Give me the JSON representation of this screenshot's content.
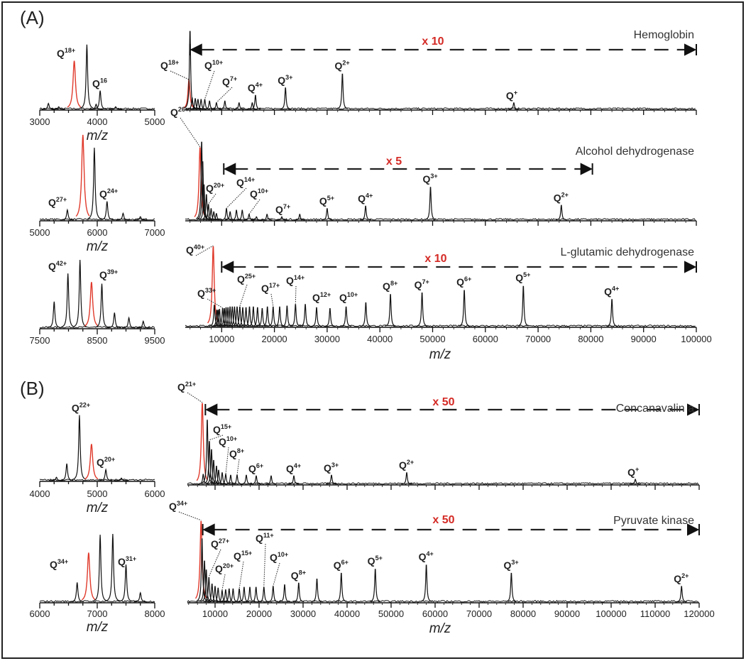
{
  "sections": {
    "a": "(A)",
    "b": "(B)"
  },
  "colors": {
    "trace": "#111111",
    "highlight": "#e03a2c",
    "multiplier": "#d42a25"
  },
  "chart_data": [
    {
      "id": "A1",
      "type": "line",
      "group": "A",
      "xlim": [
        3000,
        5000
      ],
      "xticks": [
        3000,
        4000,
        5000
      ],
      "xlabel": "m/z",
      "peaks": [
        [
          3150,
          7
        ],
        [
          3330,
          3
        ],
        [
          3600,
          57,
          "red"
        ],
        [
          3820,
          76
        ],
        [
          3980,
          6
        ],
        [
          4050,
          22
        ],
        [
          4320,
          3
        ]
      ],
      "labels": [
        {
          "q": "Q",
          "sup": "18+",
          "mz": 3820
        },
        {
          "q": "Q",
          "sup": "16",
          "mz": 4050
        }
      ]
    },
    {
      "id": "A2",
      "type": "line",
      "group": "A",
      "xlim": [
        5000,
        7000
      ],
      "xticks": [
        5000,
        6000,
        7000
      ],
      "xlabel": "m/z",
      "peaks": [
        [
          5480,
          12
        ],
        [
          5750,
          100,
          "red"
        ],
        [
          5950,
          85
        ],
        [
          6170,
          22
        ],
        [
          6450,
          8
        ],
        [
          6750,
          4
        ]
      ],
      "labels": [
        {
          "q": "Q",
          "sup": "27+",
          "mz": 5480
        },
        {
          "q": "Q",
          "sup": "24+",
          "mz": 6170
        }
      ]
    },
    {
      "id": "A3",
      "type": "line",
      "group": "A",
      "xlim": [
        7500,
        9500
      ],
      "xticks": [
        7500,
        8500,
        9500
      ],
      "xlabel": "",
      "peaks": [
        [
          7750,
          31
        ],
        [
          7990,
          64
        ],
        [
          8200,
          80
        ],
        [
          8400,
          54,
          "red"
        ],
        [
          8580,
          52
        ],
        [
          8800,
          18
        ],
        [
          9050,
          12
        ],
        [
          9300,
          8
        ]
      ],
      "labels": [
        {
          "q": "Q",
          "sup": "42+",
          "mz": 7990
        },
        {
          "q": "Q",
          "sup": "39+",
          "mz": 8580
        }
      ]
    },
    {
      "id": "Hb",
      "type": "line",
      "group": "A",
      "title": "Hemoglobin",
      "xlim": [
        3000,
        100000
      ],
      "xticks": [],
      "xlabel": "",
      "magnification": {
        "label": "x 10",
        "from": 4000,
        "to": 100000
      },
      "peaks": [
        [
          3800,
          35,
          "red"
        ],
        [
          4000,
          95
        ],
        [
          4400,
          14
        ],
        [
          5000,
          13
        ],
        [
          5500,
          12
        ],
        [
          6100,
          12
        ],
        [
          6800,
          12
        ],
        [
          7700,
          10
        ],
        [
          9000,
          8
        ],
        [
          10600,
          10
        ],
        [
          13300,
          8
        ],
        [
          15800,
          8
        ],
        [
          16400,
          17
        ],
        [
          22100,
          26
        ],
        [
          32900,
          43
        ],
        [
          65400,
          8
        ]
      ],
      "labels": [
        {
          "q": "Q",
          "sup": "18+",
          "mz": 3800
        },
        {
          "q": "Q",
          "sup": "10+",
          "mz": 6800
        },
        {
          "q": "Q",
          "sup": "7+",
          "mz": 9000
        },
        {
          "q": "Q",
          "sup": "4+",
          "mz": 16400
        },
        {
          "q": "Q",
          "sup": "3+",
          "mz": 22100
        },
        {
          "q": "Q",
          "sup": "2+",
          "mz": 32900
        },
        {
          "q": "Q",
          "sup": "+",
          "mz": 65400
        }
      ]
    },
    {
      "id": "ADH",
      "type": "line",
      "group": "A",
      "title": "Alcohol dehydrogenase",
      "xlim": [
        3000,
        100000
      ],
      "xticks": [],
      "xlabel": "",
      "magnification": {
        "label": "x 5",
        "from": 10400,
        "to": 80300
      },
      "peaks": [
        [
          5900,
          86,
          "red"
        ],
        [
          6200,
          95
        ],
        [
          6400,
          71
        ],
        [
          6650,
          43
        ],
        [
          7100,
          31
        ],
        [
          7500,
          19
        ],
        [
          8000,
          14
        ],
        [
          8500,
          10
        ],
        [
          9000,
          8
        ],
        [
          10900,
          14
        ],
        [
          11600,
          10
        ],
        [
          12800,
          12
        ],
        [
          13900,
          12
        ],
        [
          15200,
          7
        ],
        [
          16600,
          4
        ],
        [
          18600,
          7
        ],
        [
          21400,
          4
        ],
        [
          24800,
          7
        ],
        [
          30000,
          14
        ],
        [
          37300,
          17
        ],
        [
          49600,
          40
        ],
        [
          74400,
          18
        ]
      ],
      "labels": [
        {
          "q": "Q",
          "sup": "26+",
          "mz": 5900
        },
        {
          "q": "Q",
          "sup": "20+",
          "mz": 7500
        },
        {
          "q": "Q",
          "sup": "14+",
          "mz": 10900
        },
        {
          "q": "Q",
          "sup": "10+",
          "mz": 15200
        },
        {
          "q": "Q",
          "sup": "7+",
          "mz": 21400
        },
        {
          "q": "Q",
          "sup": "5+",
          "mz": 30000
        },
        {
          "q": "Q",
          "sup": "4+",
          "mz": 37300
        },
        {
          "q": "Q",
          "sup": "3+",
          "mz": 49600
        },
        {
          "q": "Q",
          "sup": "2+",
          "mz": 74400
        }
      ]
    },
    {
      "id": "LGDH",
      "type": "line",
      "group": "A",
      "title": "L-glutamic dehydrogenase",
      "xlim": [
        3000,
        100000
      ],
      "xticks": [
        10000,
        20000,
        30000,
        40000,
        50000,
        60000,
        70000,
        80000,
        90000,
        100000
      ],
      "xlabel": "m/z",
      "magnification": {
        "label": "x 10",
        "from": 10000,
        "to": 100000
      },
      "peaks": [
        [
          8400,
          95,
          "red"
        ],
        [
          8600,
          26
        ],
        [
          9080,
          20
        ],
        [
          9340,
          20
        ],
        [
          9600,
          21
        ],
        [
          10180,
          22
        ],
        [
          10500,
          22
        ],
        [
          10840,
          23
        ],
        [
          11200,
          23
        ],
        [
          11590,
          24
        ],
        [
          12000,
          24
        ],
        [
          12440,
          24
        ],
        [
          12920,
          24
        ],
        [
          13440,
          24
        ],
        [
          14000,
          23
        ],
        [
          14610,
          23
        ],
        [
          15270,
          24
        ],
        [
          16000,
          24
        ],
        [
          16800,
          23
        ],
        [
          17680,
          22
        ],
        [
          18670,
          24
        ],
        [
          19760,
          24
        ],
        [
          21000,
          24
        ],
        [
          22400,
          25
        ],
        [
          24000,
          27
        ],
        [
          25850,
          27
        ],
        [
          28000,
          23
        ],
        [
          30540,
          22
        ],
        [
          33600,
          24
        ],
        [
          37330,
          29
        ],
        [
          42000,
          39
        ],
        [
          48000,
          41
        ],
        [
          56000,
          44
        ],
        [
          67200,
          49
        ],
        [
          84000,
          33
        ]
      ],
      "labels": [
        {
          "q": "Q",
          "sup": "40+",
          "mz": 8400
        },
        {
          "q": "Q",
          "sup": "33+",
          "mz": 10180
        },
        {
          "q": "Q",
          "sup": "25+",
          "mz": 13440
        },
        {
          "q": "Q",
          "sup": "17+",
          "mz": 19760
        },
        {
          "q": "Q",
          "sup": "14+",
          "mz": 24000
        },
        {
          "q": "Q",
          "sup": "12+",
          "mz": 28000
        },
        {
          "q": "Q",
          "sup": "10+",
          "mz": 33600
        },
        {
          "q": "Q",
          "sup": "8+",
          "mz": 42000
        },
        {
          "q": "Q",
          "sup": "7+",
          "mz": 48000
        },
        {
          "q": "Q",
          "sup": "6+",
          "mz": 56000
        },
        {
          "q": "Q",
          "sup": "5+",
          "mz": 67200
        },
        {
          "q": "Q",
          "sup": "4+",
          "mz": 84000
        }
      ]
    },
    {
      "id": "B1",
      "type": "line",
      "group": "B",
      "xlim": [
        4000,
        6000
      ],
      "xticks": [
        4000,
        5000,
        6000
      ],
      "xlabel": "m/z",
      "peaks": [
        [
          4290,
          4
        ],
        [
          4470,
          20
        ],
        [
          4690,
          77
        ],
        [
          4900,
          43,
          "red"
        ],
        [
          5150,
          13
        ],
        [
          5420,
          3
        ]
      ],
      "labels": [
        {
          "q": "Q",
          "sup": "22+",
          "mz": 4690
        },
        {
          "q": "Q",
          "sup": "20+",
          "mz": 5150
        }
      ]
    },
    {
      "id": "B2",
      "type": "line",
      "group": "B",
      "xlim": [
        6000,
        8000
      ],
      "xticks": [
        6000,
        7000,
        8000
      ],
      "xlabel": "m/z",
      "peaks": [
        [
          6650,
          23
        ],
        [
          6850,
          58,
          "red"
        ],
        [
          7050,
          79
        ],
        [
          7270,
          80
        ],
        [
          7500,
          44
        ],
        [
          7750,
          11
        ]
      ],
      "labels": [
        {
          "q": "Q",
          "sup": "34+",
          "mz": 6850
        },
        {
          "q": "Q",
          "sup": "31+",
          "mz": 7500
        }
      ]
    },
    {
      "id": "ConA",
      "type": "line",
      "group": "B",
      "title": "Concanavalin a",
      "xlim": [
        3700,
        120000
      ],
      "xticks": [],
      "xlabel": "",
      "magnification": {
        "label": "x 50",
        "from": 7800,
        "to": 120000
      },
      "peaks": [
        [
          7100,
          96,
          "red"
        ],
        [
          7300,
          12
        ],
        [
          8230,
          78
        ],
        [
          8710,
          52
        ],
        [
          9190,
          42
        ],
        [
          9680,
          29
        ],
        [
          10320,
          22
        ],
        [
          10810,
          17
        ],
        [
          11610,
          14
        ],
        [
          12420,
          12
        ],
        [
          13550,
          11
        ],
        [
          15000,
          11
        ],
        [
          17100,
          11
        ],
        [
          19350,
          10
        ],
        [
          22740,
          10
        ],
        [
          27900,
          10
        ],
        [
          36450,
          11
        ],
        [
          53550,
          14
        ],
        [
          105500,
          6
        ]
      ],
      "labels": [
        {
          "q": "Q",
          "sup": "21+",
          "mz": 7100
        },
        {
          "q": "Q",
          "sup": "15+",
          "mz": 8710
        },
        {
          "q": "Q",
          "sup": "10+",
          "mz": 12420
        },
        {
          "q": "Q",
          "sup": "8+",
          "mz": 15000
        },
        {
          "q": "Q",
          "sup": "6+",
          "mz": 19350
        },
        {
          "q": "Q",
          "sup": "4+",
          "mz": 27900
        },
        {
          "q": "Q",
          "sup": "3+",
          "mz": 36450
        },
        {
          "q": "Q",
          "sup": "2+",
          "mz": 53550
        },
        {
          "q": "Q",
          "sup": "+",
          "mz": 105500
        }
      ]
    },
    {
      "id": "PK",
      "type": "line",
      "group": "B",
      "title": "Pyruvate kinase",
      "xlim": [
        3700,
        120000
      ],
      "xticks": [
        10000,
        20000,
        30000,
        40000,
        50000,
        60000,
        70000,
        80000,
        90000,
        100000,
        110000,
        120000
      ],
      "xlabel": "m/z",
      "magnification": {
        "label": "x 50",
        "from": 7200,
        "to": 120000
      },
      "peaks": [
        [
          6820,
          96,
          "red"
        ],
        [
          7030,
          77
        ],
        [
          7600,
          50
        ],
        [
          8000,
          39
        ],
        [
          8600,
          30
        ],
        [
          9300,
          22
        ],
        [
          10000,
          19
        ],
        [
          10700,
          17
        ],
        [
          11600,
          14
        ],
        [
          12400,
          15
        ],
        [
          13200,
          16
        ],
        [
          14100,
          16
        ],
        [
          15500,
          16
        ],
        [
          16600,
          18
        ],
        [
          17900,
          18
        ],
        [
          19300,
          18
        ],
        [
          21090,
          18
        ],
        [
          23200,
          19
        ],
        [
          25800,
          21
        ],
        [
          29000,
          23
        ],
        [
          33140,
          28
        ],
        [
          38670,
          35
        ],
        [
          46400,
          40
        ],
        [
          58000,
          45
        ],
        [
          77330,
          35
        ],
        [
          116000,
          19
        ]
      ],
      "labels": [
        {
          "q": "Q",
          "sup": "34+",
          "mz": 6820
        },
        {
          "q": "Q",
          "sup": "27+",
          "mz": 8600
        },
        {
          "q": "Q",
          "sup": "20+",
          "mz": 11600
        },
        {
          "q": "Q",
          "sup": "15+",
          "mz": 15500
        },
        {
          "q": "Q",
          "sup": "11+",
          "mz": 21090
        },
        {
          "q": "Q",
          "sup": "10+",
          "mz": 23200
        },
        {
          "q": "Q",
          "sup": "8+",
          "mz": 29000
        },
        {
          "q": "Q",
          "sup": "6+",
          "mz": 38670
        },
        {
          "q": "Q",
          "sup": "5+",
          "mz": 46400
        },
        {
          "q": "Q",
          "sup": "4+",
          "mz": 58000
        },
        {
          "q": "Q",
          "sup": "3+",
          "mz": 77330
        },
        {
          "q": "Q",
          "sup": "2+",
          "mz": 116000
        }
      ]
    }
  ]
}
